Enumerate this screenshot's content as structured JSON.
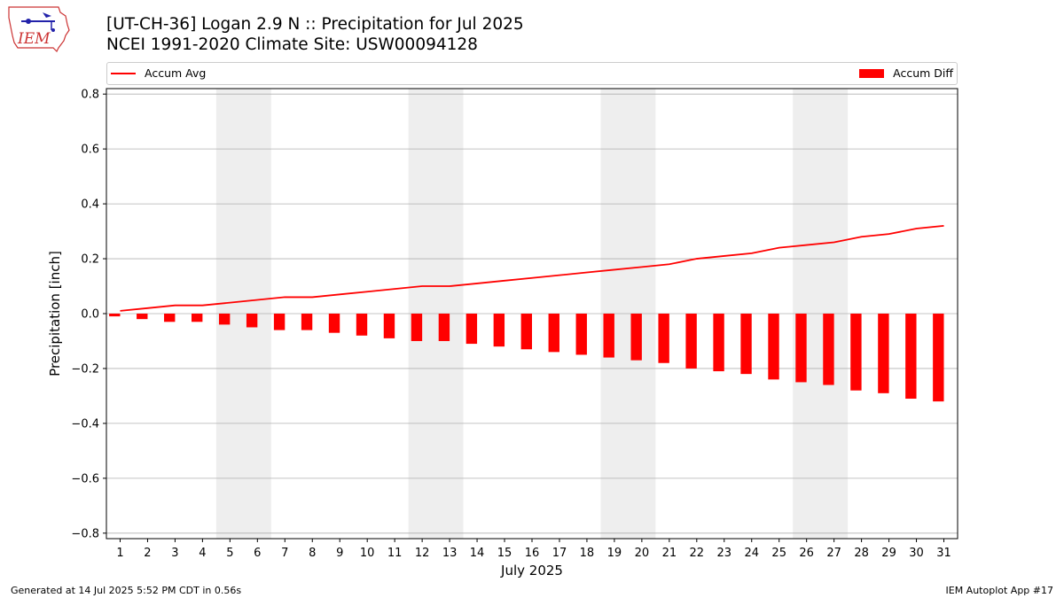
{
  "header": {
    "title_line1": "[UT-CH-36] Logan 2.9 N :: Precipitation for Jul 2025",
    "title_line2": "NCEI 1991-2020 Climate Site: USW00094128",
    "logo_text": "IEM"
  },
  "footer": {
    "left": "Generated at 14 Jul 2025 5:52 PM CDT in 0.56s",
    "right": "IEM Autoplot App #17"
  },
  "colors": {
    "series": "#ff0000",
    "weekend_shade": "#eeeeee",
    "grid": "#b0b0b0"
  },
  "chart_data": {
    "type": "bar",
    "xlabel": "July 2025",
    "ylabel": "Precipitation [inch]",
    "ylim": [
      -0.82,
      0.82
    ],
    "yticks": [
      -0.8,
      -0.6,
      -0.4,
      -0.2,
      0.0,
      0.2,
      0.4,
      0.6,
      0.8
    ],
    "ytick_labels": [
      "−0.8",
      "−0.6",
      "−0.4",
      "−0.2",
      "0.0",
      "0.2",
      "0.4",
      "0.6",
      "0.8"
    ],
    "grid": true,
    "legend_placement": "top",
    "categories": [
      1,
      2,
      3,
      4,
      5,
      6,
      7,
      8,
      9,
      10,
      11,
      12,
      13,
      14,
      15,
      16,
      17,
      18,
      19,
      20,
      21,
      22,
      23,
      24,
      25,
      26,
      27,
      28,
      29,
      30,
      31
    ],
    "weekend_spans": [
      [
        5,
        6
      ],
      [
        12,
        13
      ],
      [
        19,
        20
      ],
      [
        26,
        27
      ]
    ],
    "series": [
      {
        "name": "Accum Avg",
        "type": "line",
        "x": [
          1,
          2,
          3,
          4,
          5,
          6,
          7,
          8,
          9,
          10,
          11,
          12,
          13,
          14,
          15,
          16,
          17,
          18,
          19,
          20,
          21,
          22,
          23,
          24,
          25,
          26,
          27,
          28,
          29,
          30,
          31
        ],
        "values": [
          0.01,
          0.02,
          0.03,
          0.03,
          0.04,
          0.05,
          0.06,
          0.06,
          0.07,
          0.08,
          0.09,
          0.1,
          0.1,
          0.11,
          0.12,
          0.13,
          0.14,
          0.15,
          0.16,
          0.17,
          0.18,
          0.2,
          0.21,
          0.22,
          0.24,
          0.25,
          0.26,
          0.28,
          0.29,
          0.31,
          0.32
        ]
      },
      {
        "name": "Accum Diff",
        "type": "bar",
        "x": [
          1,
          2,
          3,
          4,
          5,
          6,
          7,
          8,
          9,
          10,
          11,
          12,
          13,
          14,
          15,
          16,
          17,
          18,
          19,
          20,
          21,
          22,
          23,
          24,
          25,
          26,
          27,
          28,
          29,
          30,
          31
        ],
        "values": [
          -0.01,
          -0.02,
          -0.03,
          -0.03,
          -0.04,
          -0.05,
          -0.06,
          -0.06,
          -0.07,
          -0.08,
          -0.09,
          -0.1,
          -0.1,
          -0.11,
          -0.12,
          -0.13,
          -0.14,
          -0.15,
          -0.16,
          -0.17,
          -0.18,
          -0.2,
          -0.21,
          -0.22,
          -0.24,
          -0.25,
          -0.26,
          -0.28,
          -0.29,
          -0.31,
          -0.32
        ]
      }
    ]
  }
}
